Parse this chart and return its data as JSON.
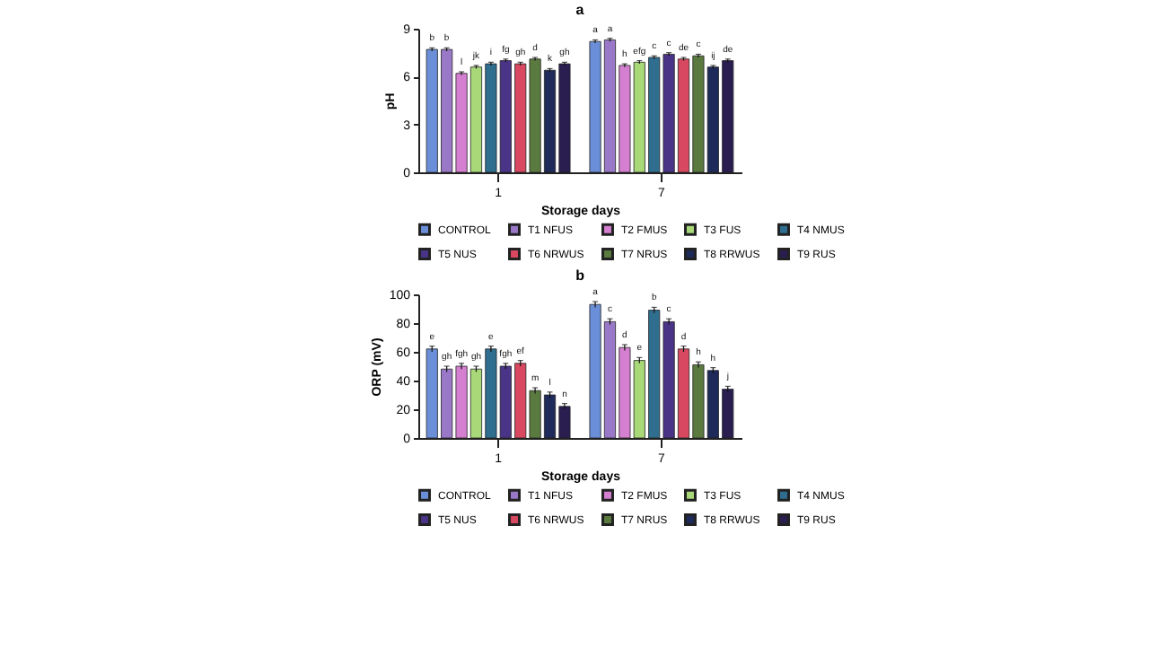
{
  "chart_data": [
    {
      "type": "bar",
      "title": "a",
      "xlabel": "Storage days",
      "ylabel": "pH",
      "categories": [
        "1",
        "7"
      ],
      "ylim": [
        0,
        9
      ],
      "yticks": [
        0,
        3,
        6,
        9
      ],
      "grid": false,
      "legend": "bottom",
      "series": [
        {
          "name": "CONTROL",
          "color": "#6a8fd8",
          "values": [
            7.7,
            8.2
          ],
          "errors": [
            0.1,
            0.1
          ],
          "value_labels": [
            "b",
            "a"
          ]
        },
        {
          "name": "T1 NFUS",
          "color": "#9a78c8",
          "values": [
            7.7,
            8.3
          ],
          "errors": [
            0.1,
            0.1
          ],
          "value_labels": [
            "b",
            "a"
          ]
        },
        {
          "name": "T2 FMUS",
          "color": "#d47fd0",
          "values": [
            6.2,
            6.7
          ],
          "errors": [
            0.1,
            0.1
          ],
          "value_labels": [
            "l",
            "h"
          ]
        },
        {
          "name": "T3 FUS",
          "color": "#a8d878",
          "values": [
            6.6,
            6.9
          ],
          "errors": [
            0.1,
            0.1
          ],
          "value_labels": [
            "jk",
            "efg"
          ]
        },
        {
          "name": "T4 NMUS",
          "color": "#2f6e8f",
          "values": [
            6.8,
            7.2
          ],
          "errors": [
            0.1,
            0.1
          ],
          "value_labels": [
            "i",
            "c"
          ]
        },
        {
          "name": "T5 NUS",
          "color": "#4a3488",
          "values": [
            7.0,
            7.4
          ],
          "errors": [
            0.1,
            0.1
          ],
          "value_labels": [
            "fg",
            "c"
          ]
        },
        {
          "name": "T6 NRWUS",
          "color": "#d84860",
          "values": [
            6.8,
            7.1
          ],
          "errors": [
            0.1,
            0.1
          ],
          "value_labels": [
            "gh",
            "de"
          ]
        },
        {
          "name": "T7 NRUS",
          "color": "#5a7a40",
          "values": [
            7.1,
            7.3
          ],
          "errors": [
            0.1,
            0.1
          ],
          "value_labels": [
            "d",
            "c"
          ]
        },
        {
          "name": "T8 RRWUS",
          "color": "#1e2a5a",
          "values": [
            6.4,
            6.6
          ],
          "errors": [
            0.1,
            0.1
          ],
          "value_labels": [
            "k",
            "ij"
          ]
        },
        {
          "name": "T9 RUS",
          "color": "#2a1e50",
          "values": [
            6.8,
            7.0
          ],
          "errors": [
            0.1,
            0.1
          ],
          "value_labels": [
            "gh",
            "de"
          ]
        }
      ]
    },
    {
      "type": "bar",
      "title": "b",
      "xlabel": "Storage days",
      "ylabel": "ORP (mV)",
      "categories": [
        "1",
        "7"
      ],
      "ylim": [
        0,
        100
      ],
      "yticks": [
        0,
        20,
        40,
        60,
        80,
        100
      ],
      "grid": false,
      "legend": "bottom",
      "series": [
        {
          "name": "CONTROL",
          "color": "#6a8fd8",
          "values": [
            62,
            93
          ],
          "errors": [
            2,
            2
          ],
          "value_labels": [
            "e",
            "a"
          ]
        },
        {
          "name": "T1 NFUS",
          "color": "#9a78c8",
          "values": [
            48,
            81
          ],
          "errors": [
            2,
            2
          ],
          "value_labels": [
            "gh",
            "c"
          ]
        },
        {
          "name": "T2 FMUS",
          "color": "#d47fd0",
          "values": [
            50,
            63
          ],
          "errors": [
            2,
            2
          ],
          "value_labels": [
            "fgh",
            "d"
          ]
        },
        {
          "name": "T3 FUS",
          "color": "#a8d878",
          "values": [
            48,
            54
          ],
          "errors": [
            2,
            2
          ],
          "value_labels": [
            "gh",
            "e"
          ]
        },
        {
          "name": "T4 NMUS",
          "color": "#2f6e8f",
          "values": [
            62,
            89
          ],
          "errors": [
            2,
            2
          ],
          "value_labels": [
            "e",
            "b"
          ]
        },
        {
          "name": "T5 NUS",
          "color": "#4a3488",
          "values": [
            50,
            81
          ],
          "errors": [
            2,
            2
          ],
          "value_labels": [
            "fgh",
            "c"
          ]
        },
        {
          "name": "T6 NRWUS",
          "color": "#d84860",
          "values": [
            52,
            62
          ],
          "errors": [
            2,
            2
          ],
          "value_labels": [
            "ef",
            "d"
          ]
        },
        {
          "name": "T7 NRUS",
          "color": "#5a7a40",
          "values": [
            33,
            51
          ],
          "errors": [
            2,
            2
          ],
          "value_labels": [
            "m",
            "h"
          ]
        },
        {
          "name": "T8 RRWUS",
          "color": "#1e2a5a",
          "values": [
            30,
            47
          ],
          "errors": [
            2,
            2
          ],
          "value_labels": [
            "l",
            "h"
          ]
        },
        {
          "name": "T9 RUS",
          "color": "#2a1e50",
          "values": [
            22,
            34
          ],
          "errors": [
            2,
            2
          ],
          "value_labels": [
            "n",
            "j"
          ]
        }
      ]
    }
  ]
}
